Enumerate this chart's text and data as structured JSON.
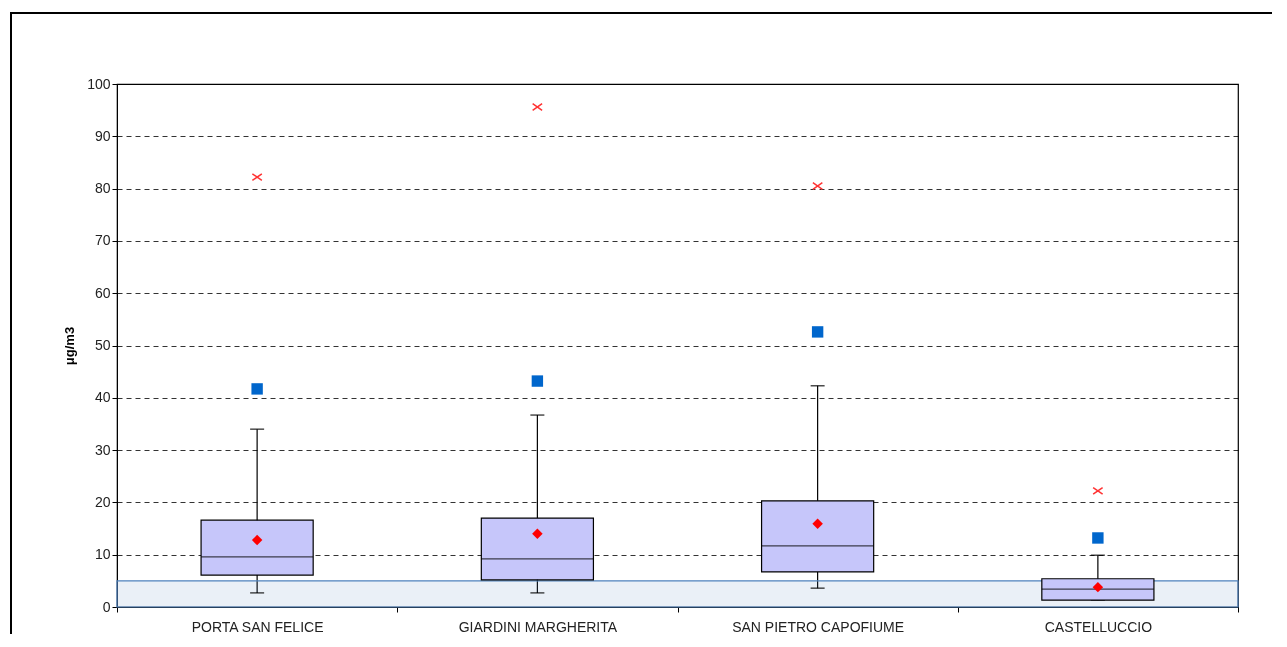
{
  "chart_data": {
    "type": "box",
    "ylabel": "μg/m3",
    "categories": [
      "PORTA SAN FELICE",
      "GIARDINI MARGHERITA",
      "SAN PIETRO CAPOFIUME",
      "CASTELLUCCIO"
    ],
    "boxes": [
      {
        "low": 2.7,
        "q1": 6.1,
        "median": 9.6,
        "q3": 16.6,
        "high": 34.0,
        "mean": 12.8
      },
      {
        "low": 2.7,
        "q1": 5.2,
        "median": 9.2,
        "q3": 17.0,
        "high": 36.7,
        "mean": 14.0
      },
      {
        "low": 3.6,
        "q1": 6.7,
        "median": 11.7,
        "q3": 20.3,
        "high": 42.3,
        "mean": 15.9
      },
      {
        "low": 1.3,
        "q1": 1.3,
        "median": 3.4,
        "q3": 5.4,
        "high": 9.9,
        "mean": 3.8
      }
    ],
    "color": "#c6c6fa",
    "series": [
      {
        "type": "scatter",
        "marker": "square",
        "color": "#0066cc",
        "x": [
          "PORTA SAN FELICE",
          "GIARDINI MARGHERITA",
          "SAN PIETRO CAPOFIUME",
          "CASTELLUCCIO"
        ],
        "values": [
          41.7,
          43.2,
          52.6,
          13.2
        ]
      },
      {
        "type": "scatter",
        "marker": "cross",
        "color": "#ff3333",
        "x": [
          "PORTA SAN FELICE",
          "GIARDINI MARGHERITA",
          "SAN PIETRO CAPOFIUME",
          "CASTELLUCCIO"
        ],
        "values": [
          82.2,
          95.6,
          80.5,
          22.2
        ]
      }
    ],
    "bands": [
      {
        "axis": "y",
        "from": 0,
        "to": 5,
        "color": "#4f81bd"
      }
    ],
    "ylim": [
      0,
      100
    ],
    "yticks": [
      0,
      10,
      20,
      30,
      40,
      50,
      60,
      70,
      80,
      90,
      100
    ],
    "grid": "y"
  }
}
